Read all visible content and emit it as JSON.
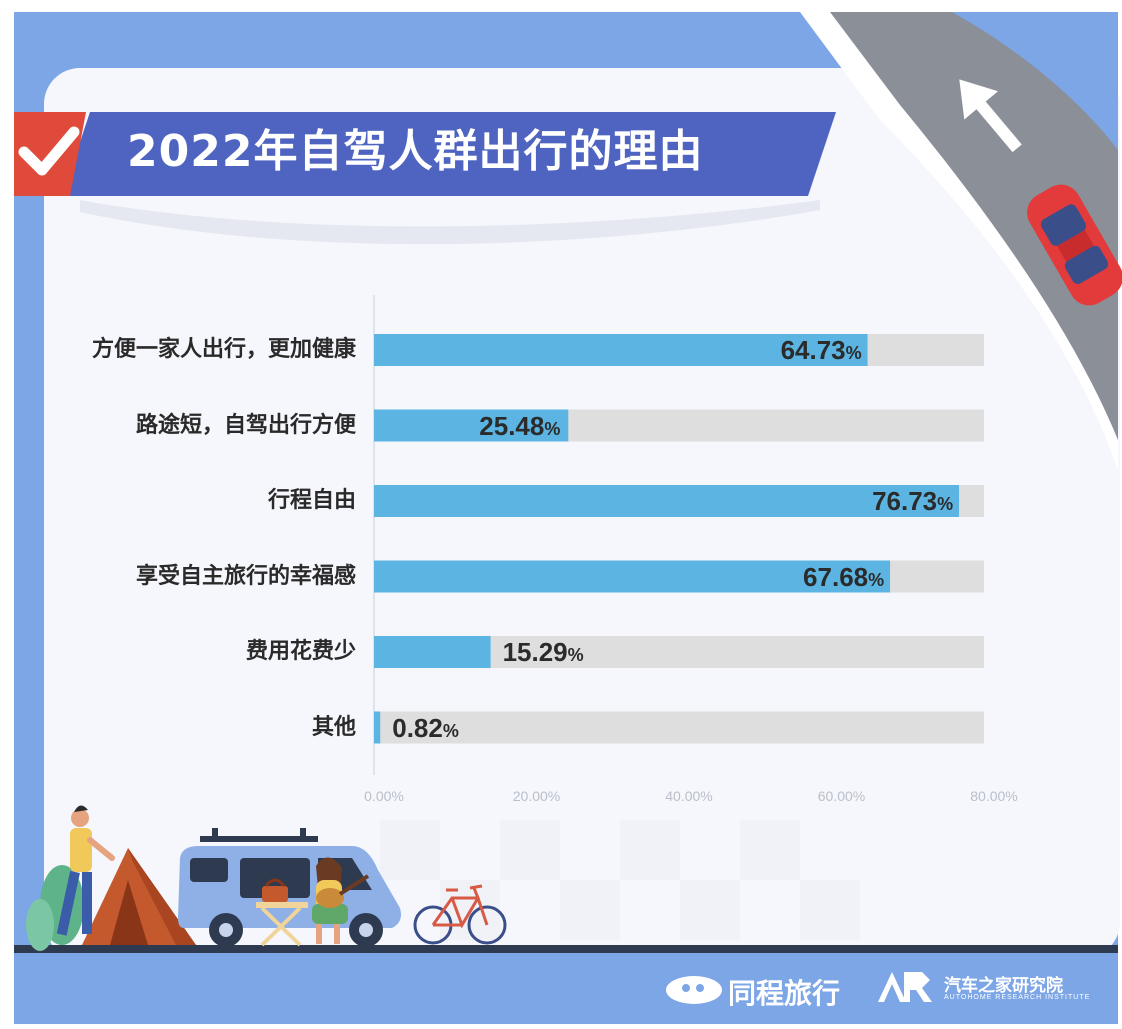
{
  "title": "2022年自驾人群出行的理由",
  "chart_data": {
    "type": "bar",
    "orientation": "horizontal",
    "title": "2022年自驾人群出行的理由",
    "categories": [
      "方便一家人出行，更加健康",
      "路途短，自驾出行方便",
      "行程自由",
      "享受自主旅行的幸福感",
      "费用花费少",
      "其他"
    ],
    "values": [
      64.73,
      25.48,
      76.73,
      67.68,
      15.29,
      0.82
    ],
    "value_labels": [
      "64.73",
      "25.48",
      "76.73",
      "67.68",
      "15.29",
      "0.82"
    ],
    "unit": "%",
    "xlim": [
      0,
      80
    ],
    "xticks": [
      "0.00%",
      "20.00%",
      "40.00%",
      "60.00%",
      "80.00%"
    ],
    "bar_color": "#5bb4e2",
    "track_color": "#dedede",
    "grid": false
  },
  "logos": {
    "left": "同程旅行",
    "right_mark": "AR",
    "right_name": "汽车之家研究院",
    "right_sub": "AUTOHOME RESEARCH INSTITUTE"
  },
  "colors": {
    "frame_blue": "#7da6e6",
    "title_banner": "#4e64c0",
    "check_red": "#e04a3a",
    "road_gray": "#8a8f98",
    "car_red": "#e33b3b"
  },
  "icons": [
    "checkmark-icon",
    "road-arrow-icon",
    "car-icon",
    "person-icon",
    "tent-icon",
    "van-icon",
    "guitar-player-icon",
    "bicycle-icon",
    "table-icon"
  ]
}
